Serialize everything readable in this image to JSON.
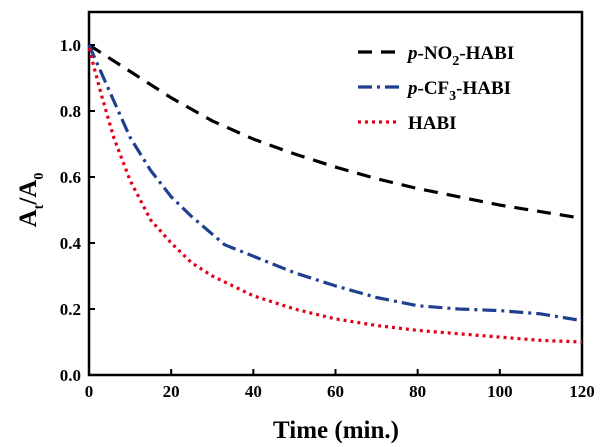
{
  "chart_data": {
    "type": "line",
    "title": "",
    "xlabel": "Time (min.)",
    "ylabel": {
      "main": "A",
      "sub_t": "t",
      "slash": "/",
      "main2": "A",
      "sub_0": "0"
    },
    "xlim": [
      0,
      120
    ],
    "ylim": [
      0,
      1.1
    ],
    "x_ticks": [
      0,
      20,
      40,
      60,
      80,
      100,
      120
    ],
    "y_ticks": [
      0.0,
      0.2,
      0.4,
      0.6,
      0.8,
      1.0
    ],
    "x_tick_labels": [
      "0",
      "20",
      "40",
      "60",
      "80",
      "100",
      "120"
    ],
    "y_tick_labels": [
      "0.0",
      "0.2",
      "0.4",
      "0.6",
      "0.8",
      "1.0"
    ],
    "grid": false,
    "legend_position": "top-right",
    "series": [
      {
        "name": "p-NO2-HABI",
        "label_parts": {
          "italic": "p",
          "a": "-NO",
          "sub": "2",
          "b": "-HABI"
        },
        "color": "#000000",
        "dash": "14 9",
        "x": [
          0,
          5,
          10,
          20,
          30,
          40,
          50,
          60,
          70,
          80,
          90,
          100,
          110,
          120
        ],
        "y": [
          1.0,
          0.96,
          0.92,
          0.84,
          0.77,
          0.715,
          0.67,
          0.63,
          0.595,
          0.565,
          0.54,
          0.515,
          0.495,
          0.475
        ]
      },
      {
        "name": "p-CF3-HABI",
        "label_parts": {
          "italic": "p",
          "a": "-CF",
          "sub": "3",
          "b": "-HABI"
        },
        "color": "#1f3f8f",
        "dash": "14 5 3 5",
        "x": [
          0,
          5,
          10,
          15,
          20,
          25,
          33,
          40,
          50,
          60,
          70,
          80,
          90,
          100,
          110,
          120
        ],
        "y": [
          1.0,
          0.86,
          0.72,
          0.62,
          0.54,
          0.48,
          0.395,
          0.36,
          0.31,
          0.27,
          0.235,
          0.21,
          0.2,
          0.195,
          0.185,
          0.165
        ]
      },
      {
        "name": "HABI",
        "label_parts": {
          "italic": "",
          "a": "HABI",
          "sub": "",
          "b": ""
        },
        "color": "#e0001a",
        "dash": "3 4",
        "x": [
          0,
          3,
          6,
          10,
          15,
          20,
          25,
          30,
          40,
          50,
          60,
          70,
          80,
          90,
          100,
          110,
          120
        ],
        "y": [
          0.99,
          0.85,
          0.72,
          0.59,
          0.47,
          0.4,
          0.34,
          0.3,
          0.24,
          0.2,
          0.17,
          0.15,
          0.135,
          0.125,
          0.115,
          0.105,
          0.1
        ]
      }
    ]
  }
}
